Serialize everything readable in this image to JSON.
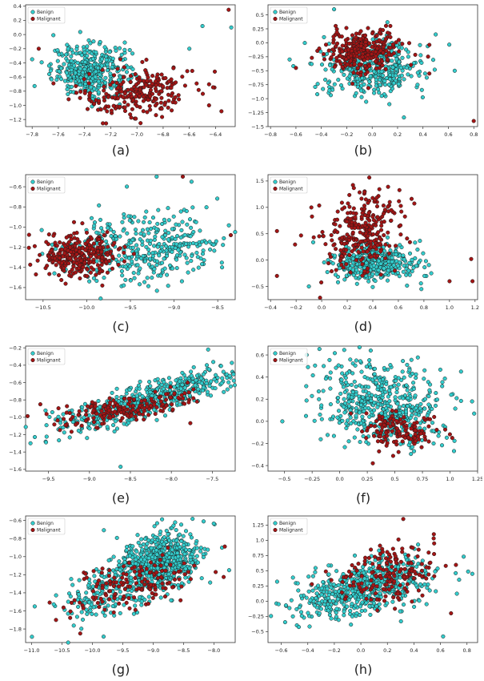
{
  "style": {
    "benign_color": "#33cccc",
    "malignant_color": "#a31515",
    "edge_color": "#1a1a1a"
  },
  "chart_data": [
    {
      "type": "scatter",
      "caption": "(a)",
      "legend": [
        "Benign",
        "Malignant"
      ],
      "legend_position": "top-left",
      "xlim": [
        -7.85,
        -6.25
      ],
      "ylim": [
        -1.3,
        0.42
      ],
      "xticks": [
        -7.8,
        -7.6,
        -7.4,
        -7.2,
        -7.0,
        -6.8,
        -6.6,
        -6.4
      ],
      "yticks": [
        -1.2,
        -1.0,
        -0.8,
        -0.6,
        -0.4,
        -0.2,
        0.0,
        0.2,
        0.4
      ],
      "benign_cluster": {
        "cx": -7.35,
        "cy": -0.5,
        "sx": 0.15,
        "sy": 0.18,
        "n": 380,
        "corr": 0.0
      },
      "malignant_cluster": {
        "cx": -7.0,
        "cy": -0.82,
        "sx": 0.22,
        "sy": 0.18,
        "n": 240,
        "corr": 0.2
      },
      "outliers": {
        "benign": [
          [
            -6.28,
            0.1
          ],
          [
            -6.5,
            0.12
          ],
          [
            -6.6,
            -0.2
          ],
          [
            -7.8,
            -0.35
          ]
        ],
        "malignant": [
          [
            -6.3,
            0.35
          ],
          [
            -7.75,
            -0.2
          ],
          [
            -6.45,
            -1.0
          ]
        ]
      }
    },
    {
      "type": "scatter",
      "caption": "(b)",
      "legend": [
        "Benign",
        "Malignant"
      ],
      "legend_position": "top-left",
      "xlim": [
        -0.82,
        0.83
      ],
      "ylim": [
        -1.5,
        0.68
      ],
      "xticks": [
        -0.8,
        -0.6,
        -0.4,
        -0.2,
        0.0,
        0.2,
        0.4,
        0.6,
        0.8
      ],
      "yticks": [
        -1.5,
        -1.25,
        -1.0,
        -0.75,
        -0.5,
        -0.25,
        0.0,
        0.25,
        0.5
      ],
      "benign_cluster": {
        "cx": 0.0,
        "cy": -0.45,
        "sx": 0.2,
        "sy": 0.25,
        "n": 380,
        "corr": 0.0
      },
      "malignant_cluster": {
        "cx": -0.08,
        "cy": -0.15,
        "sx": 0.14,
        "sy": 0.18,
        "n": 300,
        "corr": 0.0
      },
      "outliers": {
        "benign": [
          [
            -0.65,
            -0.3
          ],
          [
            0.65,
            -0.5
          ],
          [
            0.5,
            0.15
          ],
          [
            -0.3,
            0.6
          ]
        ],
        "malignant": [
          [
            0.8,
            -1.4
          ],
          [
            -0.6,
            -0.45
          ],
          [
            0.45,
            -0.55
          ]
        ]
      }
    },
    {
      "type": "scatter",
      "caption": "(c)",
      "legend": [
        "Benign",
        "Malignant"
      ],
      "legend_position": "top-left",
      "xlim": [
        -10.7,
        -8.3
      ],
      "ylim": [
        -1.72,
        -0.48
      ],
      "xticks": [
        -10.5,
        -10.0,
        -9.5,
        -9.0,
        -8.5
      ],
      "yticks": [
        -1.6,
        -1.4,
        -1.2,
        -1.0,
        -0.8,
        -0.6
      ],
      "benign_cluster": {
        "cx": -9.3,
        "cy": -1.2,
        "sx": 0.45,
        "sy": 0.18,
        "n": 380,
        "corr": 0.15
      },
      "malignant_cluster": {
        "cx": -10.1,
        "cy": -1.28,
        "sx": 0.22,
        "sy": 0.1,
        "n": 300,
        "corr": 0.0
      },
      "outliers": {
        "benign": [
          [
            -8.8,
            -0.55
          ],
          [
            -9.2,
            -0.5
          ],
          [
            -8.45,
            -1.4
          ]
        ],
        "malignant": [
          [
            -8.35,
            -1.08
          ],
          [
            -8.9,
            -0.5
          ]
        ]
      }
    },
    {
      "type": "scatter",
      "caption": "(d)",
      "legend": [
        "Benign",
        "Malignant"
      ],
      "legend_position": "top-left",
      "xlim": [
        -0.42,
        1.22
      ],
      "ylim": [
        -0.75,
        1.62
      ],
      "xticks": [
        -0.4,
        -0.2,
        0.0,
        0.2,
        0.4,
        0.6,
        0.8,
        1.0,
        1.2
      ],
      "yticks": [
        -0.5,
        0.0,
        0.5,
        1.0,
        1.5
      ],
      "benign_cluster": {
        "cx": 0.42,
        "cy": -0.05,
        "sx": 0.17,
        "sy": 0.18,
        "n": 380,
        "corr": 0.0
      },
      "malignant_cluster": {
        "cx": 0.3,
        "cy": 0.55,
        "sx": 0.16,
        "sy": 0.38,
        "n": 280,
        "corr": 0.1
      },
      "outliers": {
        "benign": [
          [
            0.78,
            -0.55
          ],
          [
            0.75,
            0.2
          ],
          [
            -0.1,
            -0.5
          ]
        ],
        "malignant": [
          [
            1.18,
            -0.4
          ],
          [
            1.17,
            0.02
          ],
          [
            1.0,
            -0.4
          ],
          [
            -0.35,
            -0.3
          ],
          [
            -0.35,
            0.55
          ]
        ]
      }
    },
    {
      "type": "scatter",
      "caption": "(e)",
      "legend": [
        "Benign",
        "Malignant"
      ],
      "legend_position": "top-left",
      "xlim": [
        -9.78,
        -7.22
      ],
      "ylim": [
        -1.62,
        -0.18
      ],
      "xticks": [
        -9.5,
        -9.0,
        -8.5,
        -8.0,
        -7.5
      ],
      "yticks": [
        -1.6,
        -1.4,
        -1.2,
        -1.0,
        -0.8,
        -0.6,
        -0.4,
        -0.2
      ],
      "benign_cluster": {
        "cx": -8.3,
        "cy": -0.8,
        "sx": 0.55,
        "sy": 0.18,
        "n": 560,
        "corr": 0.85
      },
      "malignant_cluster": {
        "cx": -8.6,
        "cy": -0.9,
        "sx": 0.45,
        "sy": 0.1,
        "n": 180,
        "corr": 0.7
      },
      "outliers": {
        "benign": [
          [
            -8.62,
            -1.57
          ],
          [
            -9.72,
            -1.3
          ],
          [
            -7.55,
            -0.22
          ]
        ],
        "malignant": [
          [
            -9.6,
            -0.85
          ],
          [
            -7.8,
            -0.6
          ]
        ]
      }
    },
    {
      "type": "scatter",
      "caption": "(f)",
      "legend": [
        "Benign",
        "Malignant"
      ],
      "legend_position": "top-left",
      "xlim": [
        -0.65,
        1.25
      ],
      "ylim": [
        -0.45,
        0.68
      ],
      "xticks": [
        -0.5,
        -0.25,
        0.0,
        0.25,
        0.5,
        0.75,
        1.0,
        1.25
      ],
      "yticks": [
        -0.4,
        -0.2,
        0.0,
        0.2,
        0.4,
        0.6
      ],
      "benign_cluster": {
        "cx": 0.38,
        "cy": 0.15,
        "sx": 0.28,
        "sy": 0.2,
        "n": 520,
        "corr": -0.25
      },
      "malignant_cluster": {
        "cx": 0.52,
        "cy": -0.08,
        "sx": 0.18,
        "sy": 0.08,
        "n": 130,
        "corr": 0.0
      },
      "outliers": {
        "benign": [
          [
            -0.52,
            0.0
          ],
          [
            1.2,
            0.18
          ],
          [
            1.1,
            0.45
          ],
          [
            -0.3,
            0.6
          ]
        ],
        "malignant": [
          [
            1.02,
            -0.15
          ],
          [
            0.3,
            -0.38
          ]
        ]
      }
    },
    {
      "type": "scatter",
      "caption": "(g)",
      "legend": [
        "Benign",
        "Malignant"
      ],
      "legend_position": "top-left",
      "xlim": [
        -11.1,
        -7.65
      ],
      "ylim": [
        -1.95,
        -0.55
      ],
      "xticks": [
        -11.0,
        -10.5,
        -10.0,
        -9.5,
        -9.0,
        -8.5,
        -8.0
      ],
      "yticks": [
        -1.8,
        -1.6,
        -1.4,
        -1.2,
        -1.0,
        -0.8,
        -0.6
      ],
      "benign_cluster": {
        "cx": -8.9,
        "cy": -1.05,
        "sx": 0.35,
        "sy": 0.16,
        "n": 620,
        "corr": 0.3
      },
      "benign_tail": {
        "cx": -9.8,
        "cy": -1.45,
        "sx": 0.4,
        "sy": 0.15,
        "n": 160,
        "corr": 0.3
      },
      "malignant_cluster": {
        "cx": -9.3,
        "cy": -1.3,
        "sx": 0.5,
        "sy": 0.15,
        "n": 150,
        "corr": 0.5
      },
      "outliers": {
        "benign": [
          [
            -10.95,
            -1.55
          ],
          [
            -7.75,
            -1.15
          ],
          [
            -10.4,
            -1.95
          ]
        ],
        "malignant": [
          [
            -10.6,
            -1.7
          ],
          [
            -10.2,
            -1.85
          ]
        ]
      }
    },
    {
      "type": "scatter",
      "caption": "(h)",
      "legend": [
        "Benign",
        "Malignant"
      ],
      "legend_position": "top-left",
      "xlim": [
        -0.7,
        0.88
      ],
      "ylim": [
        -0.68,
        1.4
      ],
      "xticks": [
        -0.6,
        -0.4,
        -0.2,
        0.0,
        0.2,
        0.4,
        0.6,
        0.8
      ],
      "yticks": [
        -0.5,
        -0.25,
        0.0,
        0.25,
        0.5,
        0.75,
        1.0,
        1.25
      ],
      "benign_cluster": {
        "cx": 0.02,
        "cy": 0.2,
        "sx": 0.26,
        "sy": 0.25,
        "n": 560,
        "corr": 0.45
      },
      "malignant_cluster": {
        "cx": 0.22,
        "cy": 0.45,
        "sx": 0.18,
        "sy": 0.25,
        "n": 170,
        "corr": 0.3
      },
      "outliers": {
        "benign": [
          [
            0.84,
            0.45
          ],
          [
            -0.62,
            -0.05
          ],
          [
            0.62,
            -0.58
          ]
        ],
        "malignant": [
          [
            0.68,
            -0.2
          ],
          [
            0.55,
            1.1
          ],
          [
            0.32,
            1.35
          ]
        ]
      }
    }
  ]
}
